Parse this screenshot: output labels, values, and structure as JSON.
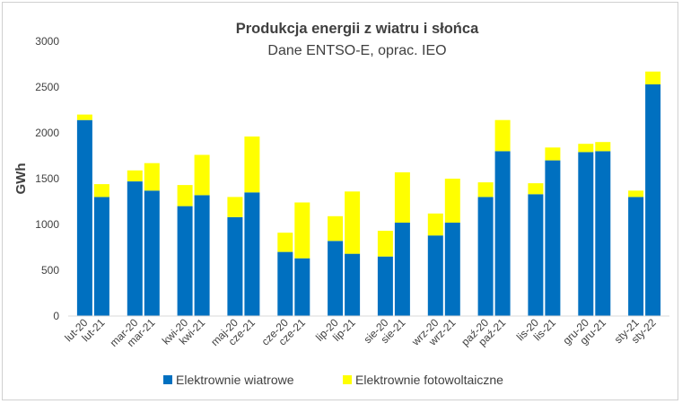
{
  "chart_data": {
    "type": "bar",
    "stacked": true,
    "title": "Produkcja energii z wiatru i słońca",
    "subtitle": "Dane ENTSO-E, oprac. IEO",
    "ylabel": "GWh",
    "ylim": [
      0,
      3000
    ],
    "yticks": [
      0,
      500,
      1000,
      1500,
      2000,
      2500,
      3000
    ],
    "grid": false,
    "legend_position": "bottom",
    "categories": [
      "lut-20",
      "lut-21",
      "mar-20",
      "mar-21",
      "kwi-20",
      "kwi-21",
      "maj-20",
      "cze-21",
      "cze-20",
      "cze-21",
      "lip-20",
      "lip-21",
      "sie-20",
      "sie-21",
      "wrz-20",
      "wrz-21",
      "paź-20",
      "paź-21",
      "lis-20",
      "lis-21",
      "gru-20",
      "gru-21",
      "sty-21",
      "sty-22"
    ],
    "series": [
      {
        "name": "Elektrownie wiatrowe",
        "color": "#0070C0",
        "values": [
          2140,
          1300,
          1470,
          1370,
          1200,
          1320,
          1080,
          1350,
          700,
          630,
          820,
          680,
          650,
          1020,
          880,
          1020,
          1300,
          1800,
          1330,
          1700,
          1790,
          1800,
          1300,
          2530
        ]
      },
      {
        "name": "Elektrownie fotowoltaiczne",
        "color": "#FFFF00",
        "values": [
          60,
          140,
          120,
          300,
          230,
          440,
          220,
          610,
          210,
          610,
          270,
          680,
          280,
          550,
          240,
          480,
          160,
          340,
          120,
          140,
          90,
          100,
          70,
          140
        ]
      }
    ]
  }
}
